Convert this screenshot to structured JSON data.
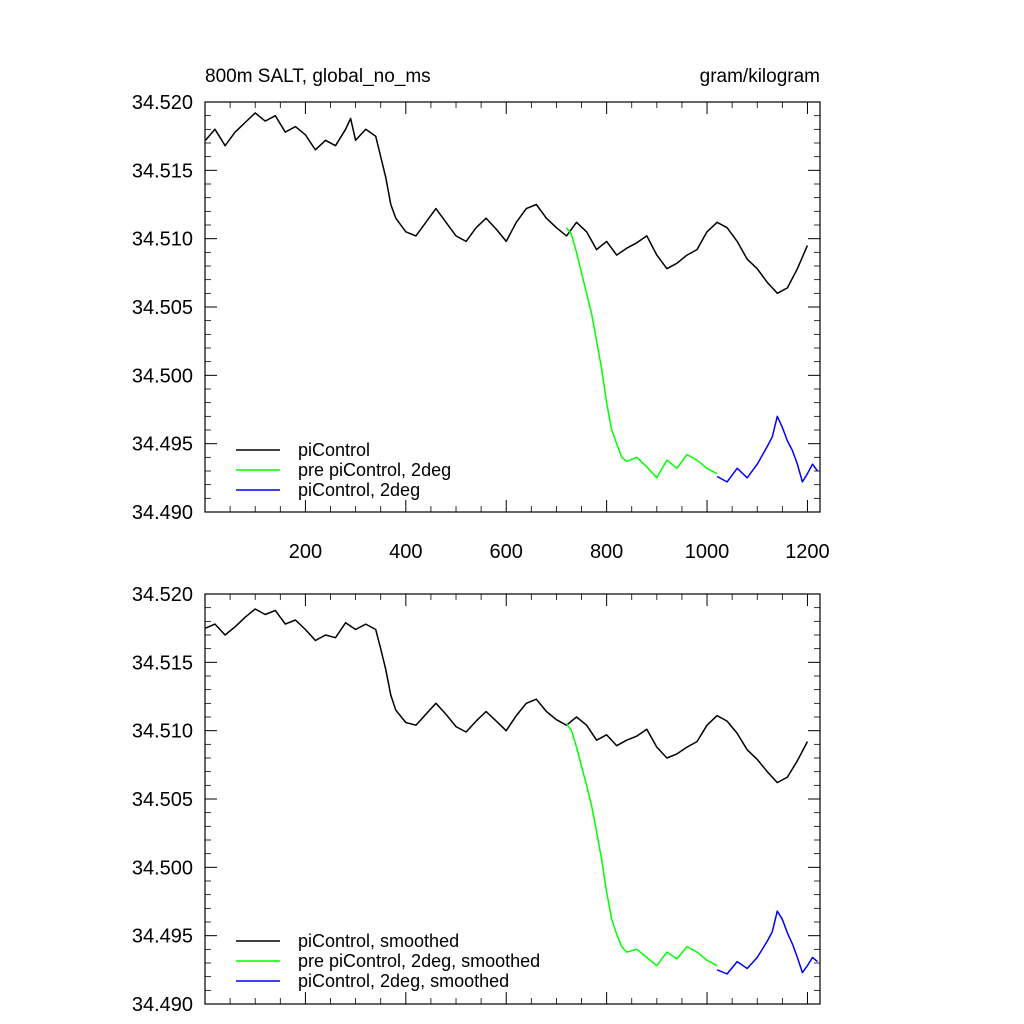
{
  "chart_data": [
    {
      "type": "line",
      "title": "800m SALT, global_no_ms",
      "units": "gram/kilogram",
      "xlim": [
        0,
        1225
      ],
      "ylim": [
        34.49,
        34.52
      ],
      "xticks": [
        200,
        400,
        600,
        800,
        1000,
        1200
      ],
      "xtick_labels": [
        "200",
        "400",
        "600",
        "800",
        "1000",
        "1200"
      ],
      "yticks": [
        34.49,
        34.495,
        34.5,
        34.505,
        34.51,
        34.515,
        34.52
      ],
      "ytick_labels": [
        "34.490",
        "34.495",
        "34.500",
        "34.505",
        "34.510",
        "34.515",
        "34.520"
      ],
      "grid": false,
      "legend_position": "bottom-left",
      "series": [
        {
          "name": "piControl",
          "color": "#000000",
          "x": [
            1,
            20,
            40,
            60,
            80,
            100,
            120,
            140,
            160,
            180,
            200,
            220,
            240,
            260,
            280,
            290,
            300,
            320,
            340,
            350,
            360,
            370,
            380,
            400,
            420,
            440,
            460,
            480,
            500,
            520,
            540,
            560,
            580,
            600,
            620,
            640,
            660,
            680,
            700,
            720,
            740,
            760,
            780,
            800,
            820,
            840,
            860,
            880,
            900,
            920,
            940,
            960,
            980,
            1000,
            1020,
            1040,
            1060,
            1080,
            1100,
            1120,
            1140,
            1160,
            1180,
            1200
          ],
          "y": [
            34.5172,
            34.518,
            34.5168,
            34.5178,
            34.5185,
            34.5192,
            34.5186,
            34.519,
            34.5178,
            34.5182,
            34.5176,
            34.5165,
            34.5172,
            34.5168,
            34.518,
            34.5188,
            34.5172,
            34.518,
            34.5175,
            34.516,
            34.5145,
            34.5125,
            34.5115,
            34.5105,
            34.5102,
            34.5112,
            34.5122,
            34.5112,
            34.5102,
            34.5098,
            34.5108,
            34.5115,
            34.5107,
            34.5098,
            34.5112,
            34.5122,
            34.5125,
            34.5115,
            34.5108,
            34.5102,
            34.5112,
            34.5105,
            34.5092,
            34.5098,
            34.5088,
            34.5093,
            34.5097,
            34.5102,
            34.5088,
            34.5078,
            34.5082,
            34.5088,
            34.5092,
            34.5105,
            34.5112,
            34.5108,
            34.5098,
            34.5085,
            34.5078,
            34.5068,
            34.506,
            34.5064,
            34.5078,
            34.5095
          ]
        },
        {
          "name": "pre piControl, 2deg",
          "color": "#00ff00",
          "x": [
            720,
            730,
            740,
            750,
            760,
            770,
            780,
            790,
            800,
            810,
            820,
            830,
            840,
            860,
            880,
            900,
            920,
            940,
            960,
            980,
            1000,
            1020
          ],
          "y": [
            34.5108,
            34.5103,
            34.509,
            34.5075,
            34.506,
            34.5045,
            34.5025,
            34.5005,
            34.498,
            34.496,
            34.495,
            34.494,
            34.4937,
            34.494,
            34.4933,
            34.4925,
            34.4938,
            34.4932,
            34.4942,
            34.4938,
            34.4932,
            34.4928
          ]
        },
        {
          "name": "piControl, 2deg",
          "color": "#0000ff",
          "x": [
            1020,
            1040,
            1060,
            1080,
            1100,
            1120,
            1130,
            1140,
            1150,
            1160,
            1170,
            1180,
            1190,
            1200,
            1210,
            1220
          ],
          "y": [
            34.4926,
            34.4922,
            34.4932,
            34.4925,
            34.4935,
            34.4948,
            34.4955,
            34.497,
            34.4962,
            34.4952,
            34.4945,
            34.4935,
            34.4922,
            34.4928,
            34.4935,
            34.493
          ]
        }
      ]
    },
    {
      "type": "line",
      "xlim": [
        0,
        1225
      ],
      "ylim": [
        34.49,
        34.52
      ],
      "yticks": [
        34.49,
        34.495,
        34.5,
        34.505,
        34.51,
        34.515,
        34.52
      ],
      "ytick_labels": [
        "34.490",
        "34.495",
        "34.500",
        "34.505",
        "34.510",
        "34.515",
        "34.520"
      ],
      "grid": false,
      "legend_position": "bottom-left",
      "series": [
        {
          "name": "piControl, smoothed",
          "color": "#000000",
          "x": [
            1,
            20,
            40,
            60,
            80,
            100,
            120,
            140,
            160,
            180,
            200,
            220,
            240,
            260,
            280,
            300,
            320,
            340,
            350,
            360,
            370,
            380,
            400,
            420,
            440,
            460,
            480,
            500,
            520,
            540,
            560,
            580,
            600,
            620,
            640,
            660,
            680,
            700,
            720,
            740,
            760,
            780,
            800,
            820,
            840,
            860,
            880,
            900,
            920,
            940,
            960,
            980,
            1000,
            1020,
            1040,
            1060,
            1080,
            1100,
            1120,
            1140,
            1160,
            1180,
            1200
          ],
          "y": [
            34.5175,
            34.5178,
            34.517,
            34.5176,
            34.5183,
            34.5189,
            34.5185,
            34.5188,
            34.5178,
            34.5181,
            34.5174,
            34.5166,
            34.517,
            34.5168,
            34.5179,
            34.5174,
            34.5178,
            34.5174,
            34.516,
            34.5145,
            34.5126,
            34.5115,
            34.5106,
            34.5104,
            34.5112,
            34.512,
            34.5112,
            34.5103,
            34.5099,
            34.5107,
            34.5114,
            34.5107,
            34.51,
            34.5111,
            34.512,
            34.5123,
            34.5114,
            34.5108,
            34.5104,
            34.511,
            34.5104,
            34.5093,
            34.5097,
            34.5089,
            34.5093,
            34.5096,
            34.5101,
            34.5088,
            34.508,
            34.5083,
            34.5088,
            34.5092,
            34.5104,
            34.5111,
            34.5107,
            34.5098,
            34.5086,
            34.5079,
            34.507,
            34.5062,
            34.5066,
            34.5078,
            34.5092
          ]
        },
        {
          "name": "pre piControl, 2deg, smoothed",
          "color": "#00ff00",
          "x": [
            720,
            730,
            740,
            750,
            760,
            770,
            780,
            790,
            800,
            810,
            820,
            830,
            840,
            860,
            880,
            900,
            920,
            940,
            960,
            980,
            1000,
            1020
          ],
          "y": [
            34.5105,
            34.51,
            34.5088,
            34.5074,
            34.506,
            34.5045,
            34.5026,
            34.5006,
            34.4982,
            34.4962,
            34.4951,
            34.4942,
            34.4938,
            34.494,
            34.4934,
            34.4928,
            34.4938,
            34.4933,
            34.4942,
            34.4938,
            34.4932,
            34.4928
          ]
        },
        {
          "name": "piControl, 2deg, smoothed",
          "color": "#0000ff",
          "x": [
            1020,
            1040,
            1060,
            1080,
            1100,
            1120,
            1130,
            1140,
            1150,
            1160,
            1170,
            1180,
            1190,
            1200,
            1210,
            1220
          ],
          "y": [
            34.4925,
            34.4922,
            34.4931,
            34.4926,
            34.4934,
            34.4946,
            34.4953,
            34.4968,
            34.4962,
            34.4952,
            34.4944,
            34.4934,
            34.4923,
            34.4928,
            34.4934,
            34.4931
          ]
        }
      ]
    }
  ]
}
